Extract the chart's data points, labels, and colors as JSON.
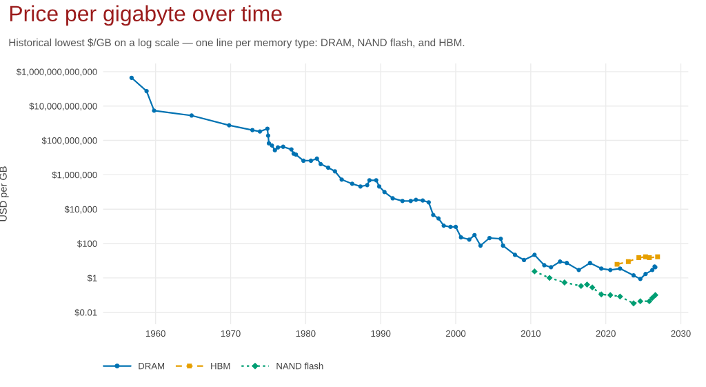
{
  "chart_data": {
    "type": "line",
    "title": "Price per gigabyte over time",
    "subtitle": "Historical lowest $/GB on a log scale — one line per memory type: DRAM, NAND flash, and HBM.",
    "ylabel": "USD per GB",
    "log": "y",
    "grid": true,
    "legend": "bottom left",
    "xlim": [
      1953,
      2031
    ],
    "xticks": [
      1960,
      1970,
      1980,
      1990,
      2000,
      2010,
      2020,
      2030
    ],
    "ylim": [
      0.002,
      3000000000000
    ],
    "yticks": [
      {
        "value": 0.01,
        "label": "$0.01"
      },
      {
        "value": 1,
        "label": "$1"
      },
      {
        "value": 100,
        "label": "$100"
      },
      {
        "value": 10000,
        "label": "$10,000"
      },
      {
        "value": 1000000,
        "label": "$1,000,000"
      },
      {
        "value": 100000000,
        "label": "$100,000,000"
      },
      {
        "value": 10000000000,
        "label": "$10,000,000,000"
      },
      {
        "value": 1000000000000,
        "label": "$1,000,000,000,000"
      }
    ],
    "series": [
      {
        "name": "DRAM",
        "color": "#0072b2",
        "marker": "circle",
        "line_style": "solid",
        "x": [
          1956.8,
          1958.8,
          1959.8,
          1964.8,
          1969.8,
          1972.9,
          1973.9,
          1974.9,
          1975.0,
          1975.1,
          1975.5,
          1975.9,
          1976.3,
          1977.0,
          1978.1,
          1978.4,
          1978.7,
          1979.7,
          1980.7,
          1981.5,
          1982.0,
          1983.0,
          1983.9,
          1984.8,
          1986.2,
          1987.3,
          1988.2,
          1988.5,
          1989.4,
          1989.8,
          1990.5,
          1991.6,
          1992.9,
          1994.0,
          1994.7,
          1995.6,
          1996.4,
          1997.0,
          1997.7,
          1998.4,
          1999.3,
          2000.0,
          2000.7,
          2001.8,
          2002.5,
          2003.3,
          2004.5,
          2006.0,
          2006.3,
          2007.9,
          2009.1,
          2010.5,
          2011.8,
          2012.7,
          2013.9,
          2014.8,
          2016.4,
          2017.9,
          2019.4,
          2020.6,
          2021.9,
          2023.7,
          2024.6,
          2025.3,
          2026.2,
          2026.5,
          2026.6
        ],
        "values": [
          440000000000,
          74000000000,
          5400000000,
          2800000000,
          760000000,
          400000000,
          330000000,
          480000000,
          190000000,
          68000000,
          51000000,
          27000000,
          39000000,
          43000000,
          30000000,
          17000000,
          15000000,
          6600000,
          6600000,
          8700000,
          4200000,
          2600000,
          1600000,
          530000,
          300000,
          210000,
          250000,
          480000,
          480000,
          210000,
          100000,
          43000,
          30000,
          30000,
          35000,
          32000,
          25000,
          4600,
          2900,
          1100,
          930,
          930,
          230,
          170,
          310,
          76,
          210,
          190,
          76,
          22,
          11,
          22,
          5.5,
          4.2,
          8.9,
          7.4,
          2.9,
          7.4,
          3.5,
          2.9,
          3.5,
          1.4,
          0.87,
          1.7,
          2.9,
          4.6,
          4.2
        ]
      },
      {
        "name": "HBM",
        "color": "#e69f00",
        "marker": "square",
        "line_style": "dashed",
        "x": [
          2021.5,
          2023.0,
          2024.4,
          2025.3,
          2025.8,
          2026.9
        ],
        "values": [
          6.2,
          8.9,
          15,
          17,
          15,
          17
        ]
      },
      {
        "name": "NAND flash",
        "color": "#009e73",
        "marker": "diamond",
        "line_style": "dotted",
        "x": [
          2010.5,
          2012.5,
          2014.5,
          2016.7,
          2017.5,
          2018.2,
          2019.4,
          2020.6,
          2021.9,
          2023.7,
          2024.6,
          2025.8,
          2026.2,
          2026.6
        ],
        "values": [
          2.4,
          1.0,
          0.54,
          0.34,
          0.41,
          0.28,
          0.11,
          0.1,
          0.083,
          0.033,
          0.044,
          0.044,
          0.069,
          0.1
        ]
      }
    ]
  }
}
